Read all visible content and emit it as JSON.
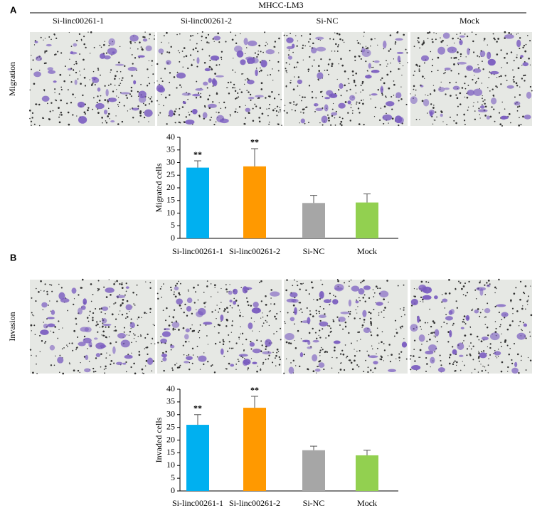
{
  "figure": {
    "cell_line": "MHCC-LM3",
    "columns": [
      "Si-linc00261-1",
      "Si-linc00261-2",
      "Si-NC",
      "Mock"
    ],
    "panels": [
      {
        "letter": "A",
        "row_label": "Migration"
      },
      {
        "letter": "B",
        "row_label": "Invasion"
      }
    ]
  },
  "chart_data": [
    {
      "type": "bar",
      "y_label": "Migrated cells",
      "categories": [
        "Si-linc00261-1",
        "Si-linc00261-2",
        "Si-NC",
        "Mock"
      ],
      "values": [
        28,
        28.5,
        14,
        14.2
      ],
      "errors": [
        2.7,
        7,
        3,
        3.4
      ],
      "colors": [
        "#00b0f0",
        "#ff9900",
        "#a6a6a6",
        "#92d050"
      ],
      "ylim": [
        0,
        40
      ],
      "yticks": [
        0,
        5,
        10,
        15,
        20,
        25,
        30,
        35,
        40
      ],
      "annotations": [
        {
          "text": "**",
          "category": "Si-linc00261-1"
        },
        {
          "text": "**",
          "category": "Si-linc00261-2"
        }
      ]
    },
    {
      "type": "bar",
      "y_label": "Invaded cells",
      "categories": [
        "Si-linc00261-1",
        "Si-linc00261-2",
        "Si-NC",
        "Mock"
      ],
      "values": [
        26,
        32.7,
        16,
        14
      ],
      "errors": [
        4,
        4.5,
        1.6,
        2
      ],
      "colors": [
        "#00b0f0",
        "#ff9900",
        "#a6a6a6",
        "#92d050"
      ],
      "ylim": [
        0,
        40
      ],
      "yticks": [
        0,
        5,
        10,
        15,
        20,
        25,
        30,
        35,
        40
      ],
      "annotations": [
        {
          "text": "**",
          "category": "Si-linc00261-1"
        },
        {
          "text": "**",
          "category": "Si-linc00261-2"
        }
      ]
    }
  ]
}
